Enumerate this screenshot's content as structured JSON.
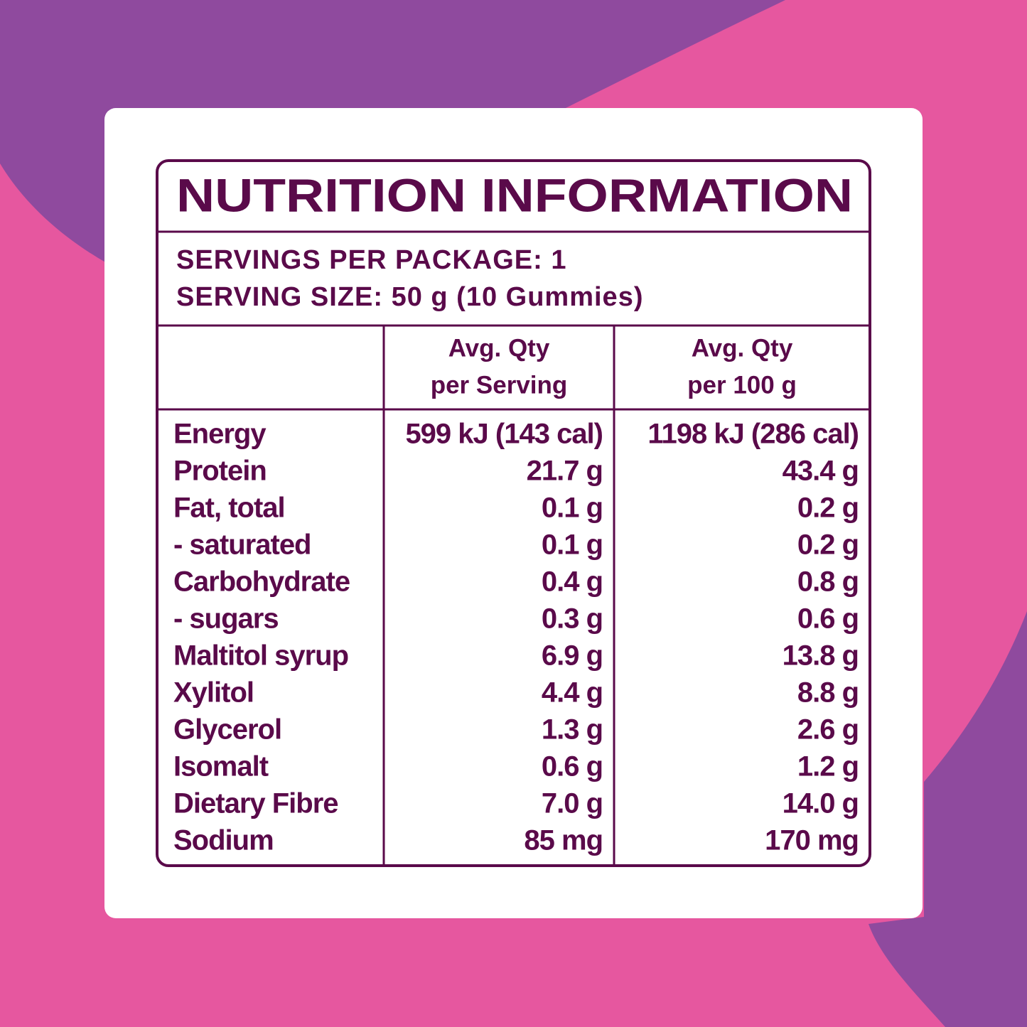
{
  "header": {
    "title": "NUTRITION INFORMATION"
  },
  "servings": [
    "SERVINGS PER PACKAGE: 1",
    "SERVING SIZE: 50 g (10 Gummies)"
  ],
  "table": {
    "columns": [
      [
        "Avg. Qty",
        "per Serving"
      ],
      [
        "Avg. Qty",
        "per 100 g"
      ]
    ],
    "rows": [
      [
        "Energy",
        "599 kJ (143 cal)",
        "1198 kJ (286 cal)"
      ],
      [
        "Protein",
        "21.7 g",
        "43.4 g"
      ],
      [
        "Fat, total",
        "0.1 g",
        "0.2 g"
      ],
      [
        "- saturated",
        "0.1 g",
        "0.2 g"
      ],
      [
        "Carbohydrate",
        "0.4 g",
        "0.8 g"
      ],
      [
        "- sugars",
        "0.3 g",
        "0.6 g"
      ],
      [
        "Maltitol syrup",
        "6.9 g",
        "13.8 g"
      ],
      [
        "Xylitol",
        "4.4 g",
        "8.8 g"
      ],
      [
        "Glycerol",
        "1.3 g",
        "2.6 g"
      ],
      [
        "Isomalt",
        "0.6 g",
        "1.2 g"
      ],
      [
        "Dietary Fibre",
        "7.0 g",
        "14.0 g"
      ],
      [
        "Sodium",
        "85 mg",
        "170 mg"
      ]
    ]
  }
}
